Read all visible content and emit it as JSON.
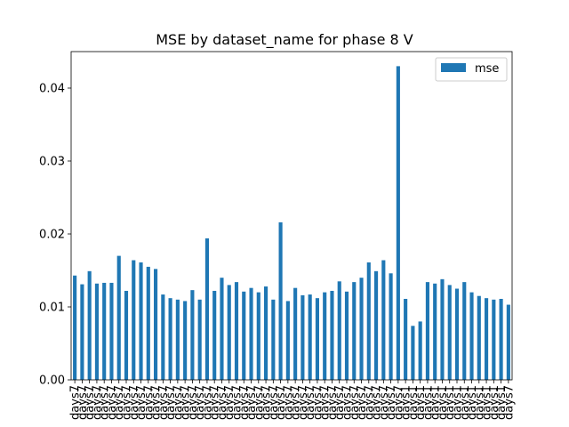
{
  "chart_data": {
    "type": "bar",
    "title": "MSE by dataset_name for phase 8 V",
    "xlabel": "",
    "ylabel": "",
    "ylim": [
      0,
      0.045
    ],
    "yticks": [
      "0.00",
      "0.01",
      "0.02",
      "0.03",
      "0.04"
    ],
    "grid": false,
    "legend_position": "top-right",
    "bar_color": "#1f77b4",
    "categories": [
      "days7",
      "days7",
      "days7",
      "days7",
      "days7",
      "days7",
      "days7",
      "days7",
      "days7",
      "days7",
      "days7",
      "days7",
      "days7",
      "days7",
      "days7",
      "days7",
      "days7",
      "days7",
      "days7",
      "days7",
      "days7",
      "days7",
      "days7",
      "days7",
      "days7",
      "days7",
      "days7",
      "days7",
      "days7",
      "days7",
      "days7",
      "days7",
      "days7",
      "days7",
      "days7",
      "days7",
      "days7",
      "days7",
      "days7",
      "days7",
      "days7",
      "days7",
      "days7",
      "days7",
      "days7",
      "days1",
      "days1",
      "days1",
      "days1",
      "days1",
      "days1",
      "days1",
      "days1",
      "days1",
      "days1",
      "days1",
      "days1",
      "days1",
      "days1",
      "days7"
    ],
    "series": [
      {
        "name": "mse",
        "values": [
          0.0143,
          0.0131,
          0.0149,
          0.0132,
          0.0133,
          0.0133,
          0.017,
          0.0122,
          0.0164,
          0.0161,
          0.0155,
          0.0152,
          0.0117,
          0.0112,
          0.011,
          0.0108,
          0.0123,
          0.011,
          0.0194,
          0.0122,
          0.014,
          0.013,
          0.0134,
          0.0121,
          0.0126,
          0.012,
          0.0128,
          0.011,
          0.0216,
          0.0108,
          0.0126,
          0.0116,
          0.0117,
          0.0112,
          0.012,
          0.0122,
          0.0135,
          0.0121,
          0.0134,
          0.014,
          0.0161,
          0.0149,
          0.0164,
          0.0146,
          0.043,
          0.0111,
          0.0074,
          0.008,
          0.0134,
          0.0132,
          0.0138,
          0.013,
          0.0125,
          0.0134,
          0.012,
          0.0115,
          0.0112,
          0.011,
          0.0111,
          0.0103
        ]
      }
    ]
  }
}
